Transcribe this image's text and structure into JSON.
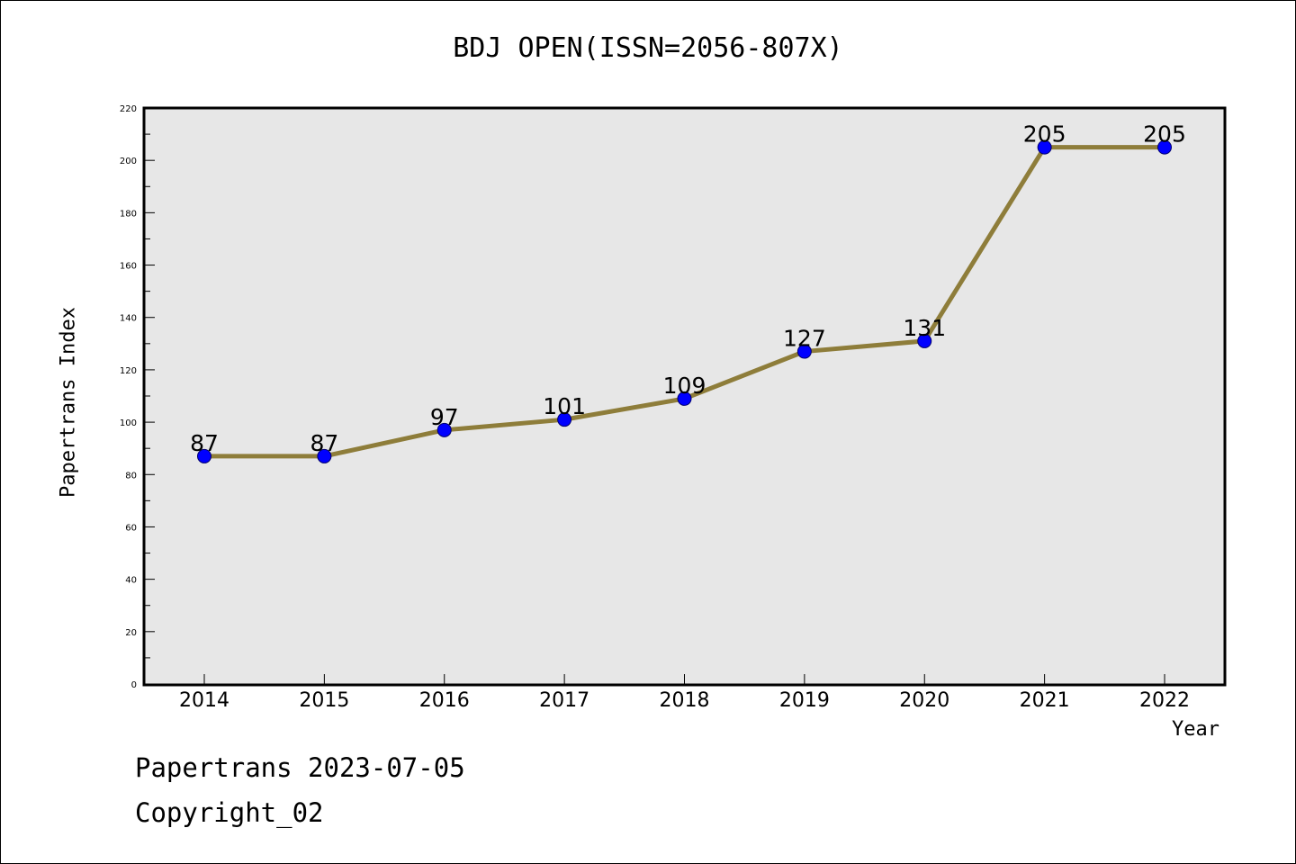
{
  "chart_data": {
    "type": "line",
    "title": "BDJ OPEN(ISSN=2056-807X)",
    "xlabel": "Year",
    "ylabel": "Papertrans Index",
    "categories": [
      "2014",
      "2015",
      "2016",
      "2017",
      "2018",
      "2019",
      "2020",
      "2021",
      "2022"
    ],
    "series": [
      {
        "values": [
          87,
          87,
          97,
          101,
          109,
          127,
          131,
          205,
          205
        ]
      }
    ],
    "data_labels": [
      "87",
      "87",
      "97",
      "101",
      "109",
      "127",
      "131",
      "205",
      "205"
    ],
    "y_ticks": [
      "0",
      "20",
      "40",
      "60",
      "80",
      "100",
      "120",
      "140",
      "160",
      "180",
      "200",
      "220"
    ],
    "ylim": [
      0,
      220
    ],
    "grid": false,
    "line_color": "#8e7d3a",
    "marker_color": "#0000ff",
    "plot_background": "#e7e7e7"
  },
  "footer": {
    "line1": "Papertrans 2023-07-05",
    "line2": "Copyright_02"
  }
}
